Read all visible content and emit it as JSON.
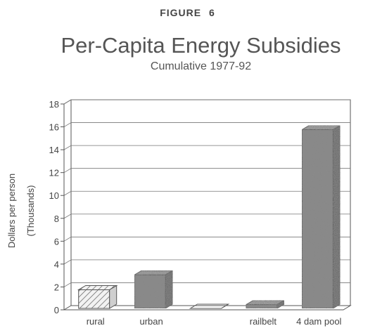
{
  "figure_label": "FIGURE 6",
  "chart_data": {
    "type": "bar",
    "title": "Per-Capita Energy Subsidies",
    "subtitle": "Cumulative 1977-92",
    "ylabel_line1": "Dollars per person",
    "ylabel_line2": "(Thousands)",
    "xlabel": "",
    "ylim": [
      0,
      18
    ],
    "yticks": [
      0,
      2,
      4,
      6,
      8,
      10,
      12,
      14,
      16,
      18
    ],
    "grid": true,
    "categories": [
      "rural",
      "urban",
      "",
      "railbelt",
      "4 dam pool"
    ],
    "values": [
      2.0,
      3.3,
      0,
      0.7,
      16.0
    ],
    "patterns": [
      "hatch",
      "stipple",
      "none",
      "stipple",
      "stipple"
    ]
  }
}
